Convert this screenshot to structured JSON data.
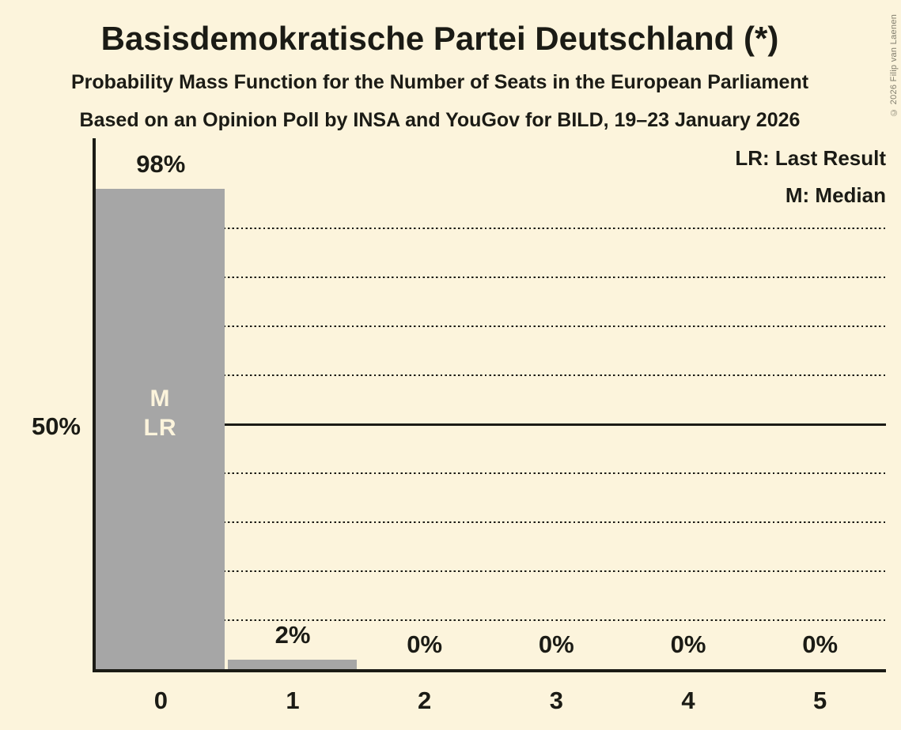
{
  "copyright": "© 2026 Filip van Laenen",
  "colors": {
    "background": "#fcf4dc",
    "bar": "#a6a6a6",
    "text": "#1b1b15",
    "bar_annotation_text": "#fcf4dc",
    "copyright_text": "#827e6e"
  },
  "chart_data": {
    "type": "bar",
    "title": "Basisdemokratische Partei Deutschland (*)",
    "subtitle": "Probability Mass Function for the Number of Seats in the European Parliament",
    "source_line": "Based on an Opinion Poll by INSA and YouGov for BILD, 19–23 January 2026",
    "categories": [
      "0",
      "1",
      "2",
      "3",
      "4",
      "5"
    ],
    "values": [
      98,
      2,
      0,
      0,
      0,
      0
    ],
    "value_labels": [
      "98%",
      "2%",
      "0%",
      "0%",
      "0%",
      "0%"
    ],
    "xlabel": "",
    "ylabel": "",
    "ylim": [
      0,
      100
    ],
    "grid": "horizontal dotted lines every 10%, solid line at 50%",
    "gridlines_pct": [
      10,
      20,
      30,
      40,
      50,
      60,
      70,
      80,
      90
    ],
    "y_reference": {
      "pct": 50,
      "label": "50%"
    },
    "legend_position": "top-right",
    "legend": [
      {
        "abbr": "LR",
        "label": "LR: Last Result"
      },
      {
        "abbr": "M",
        "label": "M: Median"
      }
    ],
    "bar_annotations": [
      {
        "category": "0",
        "lines": [
          "M",
          "LR"
        ]
      }
    ],
    "median_seats": "0",
    "last_result_seats": "0"
  }
}
